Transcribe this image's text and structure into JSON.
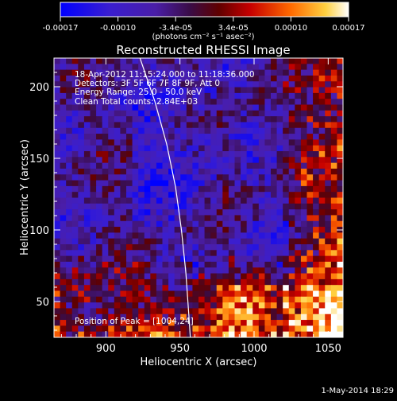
{
  "colorbar": {
    "ticks": [
      "-0.00017",
      "-0.00010",
      "-3.4e-05",
      "3.4e-05",
      "0.00010",
      "0.00017"
    ],
    "units": "(photons cm⁻² s⁻¹ asec⁻²)"
  },
  "chart_data": {
    "type": "heatmap",
    "title": "Reconstructed RHESSI Image",
    "xlabel": "Heliocentric X (arcsec)",
    "ylabel": "Heliocentric Y (arcsec)",
    "xlim": [
      865,
      1060
    ],
    "ylim": [
      25,
      220
    ],
    "xticks": [
      900,
      950,
      1000,
      1050
    ],
    "yticks": [
      50,
      100,
      150,
      200
    ],
    "clim": [
      -0.00017,
      0.00017
    ],
    "limb_curve": [
      [
        923,
        220
      ],
      [
        933,
        190
      ],
      [
        941,
        160
      ],
      [
        947,
        130
      ],
      [
        951,
        100
      ],
      [
        954,
        70
      ],
      [
        956,
        40
      ],
      [
        957,
        25
      ]
    ],
    "peak": {
      "x": 1004,
      "y": 24
    },
    "annotations": [
      "18-Apr-2012 11:15:24.000 to 11:18:36.000",
      "Detectors: 3F 5F 6F 7F 8F 9F, Att 0",
      "Energy Range: 25.0 - 50.0 keV",
      "Clean    Total counts: 2.84E+03"
    ],
    "peak_label": "Position of Peak = [1004,24]"
  },
  "footer_date": "1-May-2014 18:29"
}
